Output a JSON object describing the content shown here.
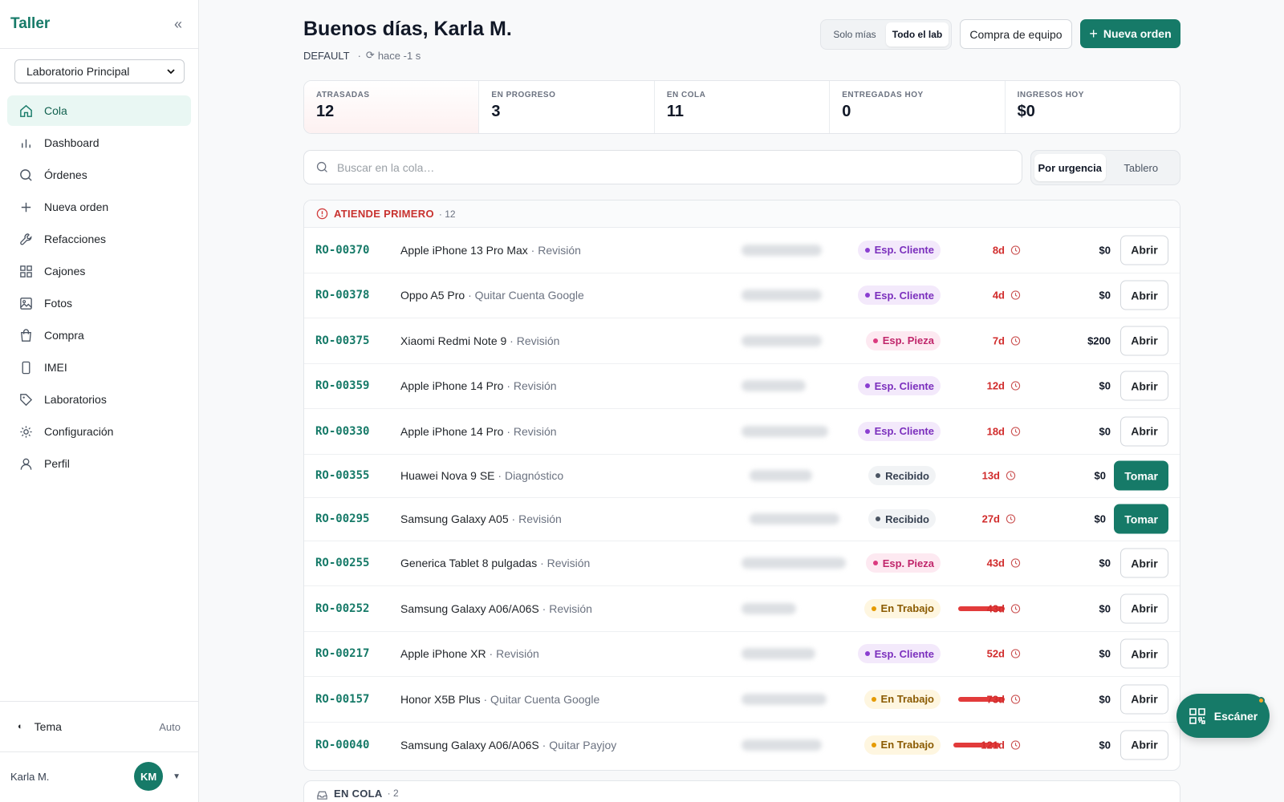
{
  "sidebar": {
    "brand": "Taller",
    "lab_select": "Laboratorio Principal",
    "items": [
      {
        "label": "Cola",
        "icon": "home-icon",
        "active": true
      },
      {
        "label": "Dashboard",
        "icon": "bar-chart-icon"
      },
      {
        "label": "Órdenes",
        "icon": "search-icon"
      },
      {
        "label": "Nueva orden",
        "icon": "plus-icon"
      },
      {
        "label": "Refacciones",
        "icon": "wrench-icon"
      },
      {
        "label": "Cajones",
        "icon": "grid-icon"
      },
      {
        "label": "Fotos",
        "icon": "image-icon"
      },
      {
        "label": "Compra",
        "icon": "shopping-bag-icon"
      },
      {
        "label": "IMEI",
        "icon": "phone-icon"
      },
      {
        "label": "Laboratorios",
        "icon": "tag-icon"
      },
      {
        "label": "Configuración",
        "icon": "gear-icon"
      },
      {
        "label": "Perfil",
        "icon": "user-icon"
      }
    ],
    "theme": {
      "label": "Tema",
      "value": "Auto"
    },
    "user": {
      "name": "Karla M.",
      "initials": "KM"
    }
  },
  "header": {
    "greeting": "Buenos días, Karla M.",
    "tenant": "DEFAULT",
    "updated": "hace -1 s",
    "scope_options": [
      "Solo mías",
      "Todo el lab"
    ],
    "scope_selected": "Todo el lab",
    "equipment_button": "Compra de equipo",
    "new_order_button": "Nueva orden"
  },
  "stats": [
    {
      "label": "ATRASADAS",
      "value": "12"
    },
    {
      "label": "EN PROGRESO",
      "value": "3"
    },
    {
      "label": "EN COLA",
      "value": "11"
    },
    {
      "label": "ENTREGADAS HOY",
      "value": "0"
    },
    {
      "label": "INGRESOS HOY",
      "value": "$0"
    }
  ],
  "search": {
    "placeholder": "Buscar en la cola…"
  },
  "view_options": [
    "Por urgencia",
    "Tablero"
  ],
  "view_selected": "Por urgencia",
  "priority_section": {
    "title": "ATIENDE PRIMERO",
    "count": "· 12",
    "rows": [
      {
        "id": "RO-00370",
        "device": "Apple iPhone 13 Pro Max",
        "service": "· Revisión",
        "status": "Esp. Cliente",
        "age": "8d",
        "amount": "$0",
        "action": "Abrir"
      },
      {
        "id": "RO-00378",
        "device": "Oppo A5 Pro",
        "service": "· Quitar Cuenta Google",
        "status": "Esp. Cliente",
        "age": "4d",
        "amount": "$0",
        "action": "Abrir"
      },
      {
        "id": "RO-00375",
        "device": "Xiaomi Redmi Note 9",
        "service": "· Revisión",
        "status": "Esp. Pieza",
        "age": "7d",
        "amount": "$200",
        "action": "Abrir"
      },
      {
        "id": "RO-00359",
        "device": "Apple iPhone 14 Pro",
        "service": "· Revisión",
        "status": "Esp. Cliente",
        "age": "12d",
        "amount": "$0",
        "action": "Abrir"
      },
      {
        "id": "RO-00330",
        "device": "Apple iPhone 14 Pro",
        "service": "· Revisión",
        "status": "Esp. Cliente",
        "age": "18d",
        "amount": "$0",
        "action": "Abrir"
      },
      {
        "id": "RO-00355",
        "device": "Huawei Nova 9 SE",
        "service": "· Diagnóstico",
        "status": "Recibido",
        "age": "13d",
        "amount": "$0",
        "action": "Tomar"
      },
      {
        "id": "RO-00295",
        "device": "Samsung Galaxy A05",
        "service": "· Revisión",
        "status": "Recibido",
        "age": "27d",
        "amount": "$0",
        "action": "Tomar"
      },
      {
        "id": "RO-00255",
        "device": "Generica Tablet 8 pulgadas",
        "service": "· Revisión",
        "status": "Esp. Pieza",
        "age": "43d",
        "amount": "$0",
        "action": "Abrir"
      },
      {
        "id": "RO-00252",
        "device": "Samsung Galaxy A06/A06S",
        "service": "· Revisión",
        "status": "En Trabajo",
        "age": "43d",
        "amount": "$0",
        "action": "Abrir"
      },
      {
        "id": "RO-00217",
        "device": "Apple iPhone XR",
        "service": "· Revisión",
        "status": "Esp. Cliente",
        "age": "52d",
        "amount": "$0",
        "action": "Abrir"
      },
      {
        "id": "RO-00157",
        "device": "Honor X5B Plus",
        "service": "· Quitar Cuenta Google",
        "status": "En Trabajo",
        "age": "73d",
        "amount": "$0",
        "action": "Abrir"
      },
      {
        "id": "RO-00040",
        "device": "Samsung Galaxy A06/A06S",
        "service": "· Quitar Payjoy",
        "status": "En Trabajo",
        "age": "121d",
        "amount": "$0",
        "action": "Abrir"
      }
    ]
  },
  "queue_section": {
    "title": "EN COLA",
    "count": "· 2"
  },
  "scanner_button": "Escáner",
  "colors": {
    "accent": "#167a68",
    "overdue": "#d12c2c"
  }
}
